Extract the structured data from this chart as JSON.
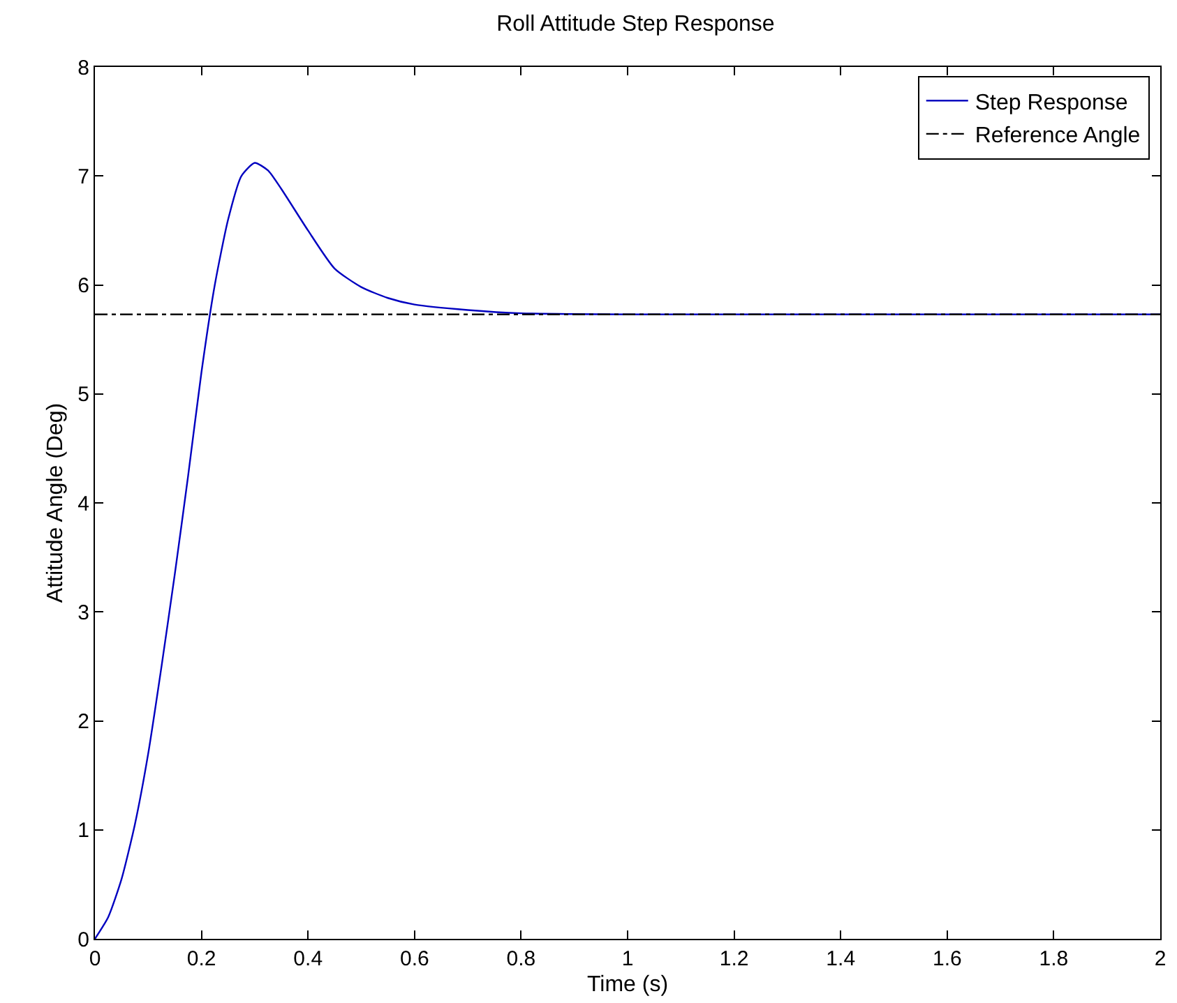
{
  "chart_data": {
    "type": "line",
    "title": "Roll Attitude Step Response",
    "xlabel": "Time (s)",
    "ylabel": "Attitude Angle (Deg)",
    "xlim": [
      0,
      2
    ],
    "xticks": [
      0,
      0.2,
      0.4,
      0.6,
      0.8,
      1,
      1.2,
      1.4,
      1.6,
      1.8,
      2
    ],
    "ylim": [
      0,
      8
    ],
    "yticks": [
      0,
      1,
      2,
      3,
      4,
      5,
      6,
      7,
      8
    ],
    "grid": false,
    "legend": "top right",
    "marker": "none",
    "series": [
      {
        "name": "Step Response",
        "color": "#0000c0",
        "line_style": "solid",
        "x": [
          0,
          0.025,
          0.05,
          0.075,
          0.1,
          0.125,
          0.15,
          0.175,
          0.2,
          0.225,
          0.25,
          0.275,
          0.3,
          0.325,
          0.35,
          0.4,
          0.45,
          0.5,
          0.55,
          0.6,
          0.7,
          0.8,
          1,
          2
        ],
        "values": [
          0,
          0.2,
          0.55,
          1.05,
          1.7,
          2.5,
          3.35,
          4.25,
          5.2,
          6.0,
          6.6,
          7.0,
          7.12,
          7.05,
          6.88,
          6.5,
          6.15,
          5.98,
          5.88,
          5.82,
          5.77,
          5.74,
          5.73,
          5.73
        ]
      },
      {
        "name": "Reference Angle",
        "color": "#000000",
        "line_style": "dashed",
        "x": [
          0,
          2
        ],
        "values": [
          5.73,
          5.73
        ]
      }
    ]
  }
}
